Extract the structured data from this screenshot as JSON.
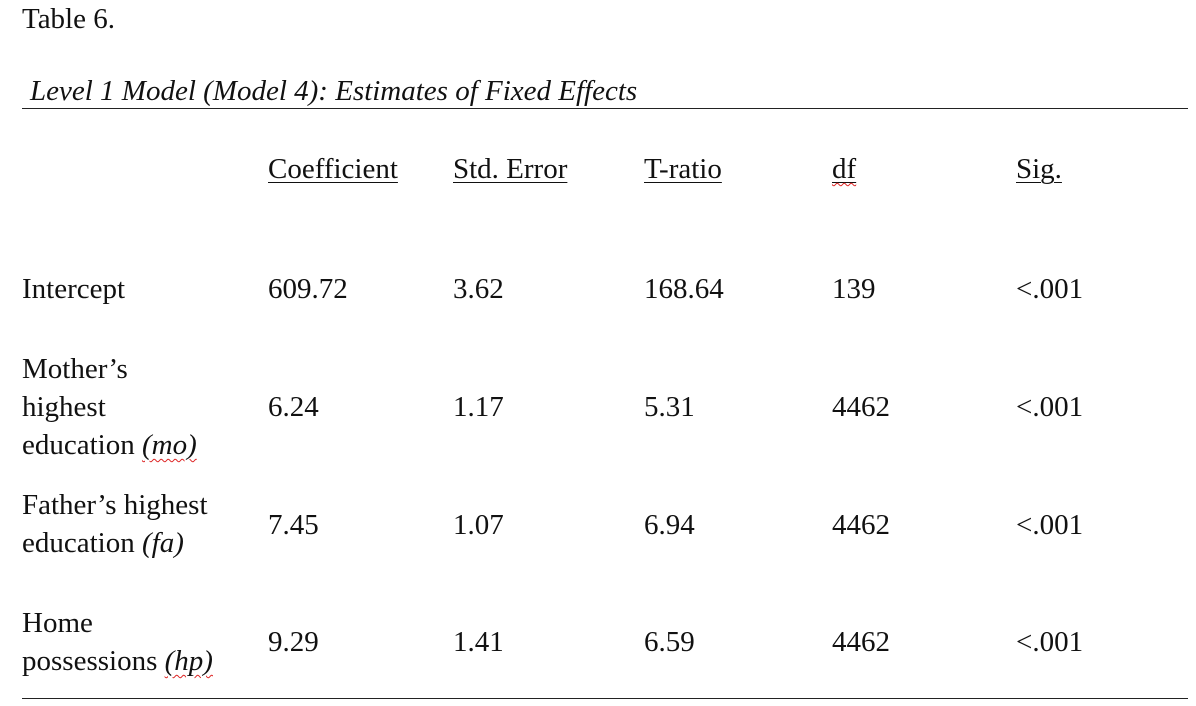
{
  "table_number": "Table 6.",
  "table_title": "Level 1 Model (Model 4): Estimates of Fixed Effects",
  "columns": [
    "Coefficient",
    "Std. Error",
    "T-ratio",
    "df",
    "Sig."
  ],
  "rows": [
    {
      "label_lines": [
        "Intercept"
      ],
      "label_suffix": "",
      "values": [
        "609.72",
        "3.62",
        "168.64",
        "139",
        "<.001"
      ]
    },
    {
      "label_lines": [
        "Mother’s",
        "highest",
        "education"
      ],
      "label_suffix": "(mo)",
      "values": [
        "6.24",
        "1.17",
        "5.31",
        "4462",
        "<.001"
      ]
    },
    {
      "label_lines": [
        "Father’s highest",
        "education"
      ],
      "label_suffix": "(fa)",
      "values": [
        "7.45",
        "1.07",
        "6.94",
        "4462",
        "<.001"
      ]
    },
    {
      "label_lines": [
        "Home",
        "possessions"
      ],
      "label_suffix": "(hp)",
      "values": [
        "9.29",
        "1.41",
        "6.59",
        "4462",
        "<.001"
      ]
    }
  ]
}
